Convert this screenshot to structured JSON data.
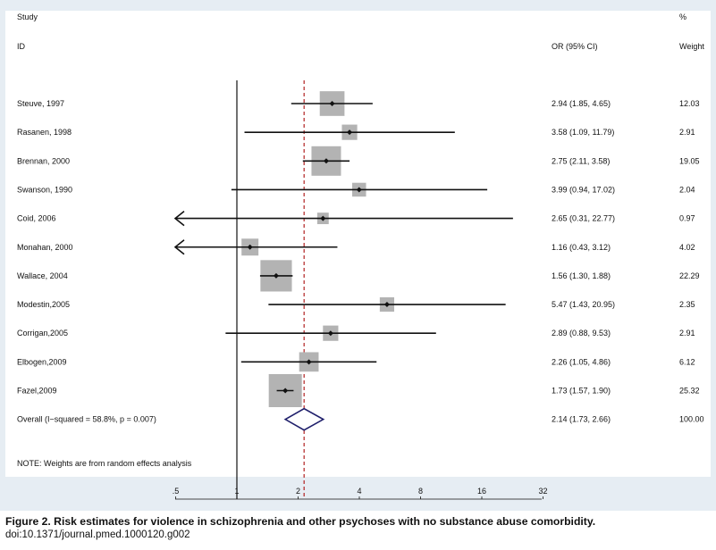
{
  "chart_data": {
    "type": "forest",
    "header": {
      "study_line1": "Study",
      "study_line2": "ID",
      "or_label": "OR (95% CI)",
      "weight_line1": "%",
      "weight_line2": "Weight"
    },
    "studies": [
      {
        "label": "Steuve, 1997",
        "or": 2.94,
        "lo": 1.85,
        "hi": 4.65,
        "weight": 12.03,
        "ci_text": "2.94 (1.85, 4.65)",
        "weight_text": "12.03"
      },
      {
        "label": "Rasanen, 1998",
        "or": 3.58,
        "lo": 1.09,
        "hi": 11.79,
        "weight": 2.91,
        "ci_text": "3.58 (1.09, 11.79)",
        "weight_text": "2.91"
      },
      {
        "label": "Brennan, 2000",
        "or": 2.75,
        "lo": 2.11,
        "hi": 3.58,
        "weight": 19.05,
        "ci_text": "2.75 (2.11, 3.58)",
        "weight_text": "19.05"
      },
      {
        "label": "Swanson, 1990",
        "or": 3.99,
        "lo": 0.94,
        "hi": 17.02,
        "weight": 2.04,
        "ci_text": "3.99 (0.94, 17.02)",
        "weight_text": "2.04"
      },
      {
        "label": "Coid, 2006",
        "or": 2.65,
        "lo": 0.31,
        "hi": 22.77,
        "weight": 0.97,
        "ci_text": "2.65 (0.31, 22.77)",
        "weight_text": "0.97"
      },
      {
        "label": "Monahan, 2000",
        "or": 1.16,
        "lo": 0.43,
        "hi": 3.12,
        "weight": 4.02,
        "ci_text": "1.16 (0.43, 3.12)",
        "weight_text": "4.02"
      },
      {
        "label": "Wallace, 2004",
        "or": 1.56,
        "lo": 1.3,
        "hi": 1.88,
        "weight": 22.29,
        "ci_text": "1.56 (1.30, 1.88)",
        "weight_text": "22.29"
      },
      {
        "label": "Modestin,2005",
        "or": 5.47,
        "lo": 1.43,
        "hi": 20.95,
        "weight": 2.35,
        "ci_text": "5.47 (1.43, 20.95)",
        "weight_text": "2.35"
      },
      {
        "label": "Corrigan,2005",
        "or": 2.89,
        "lo": 0.88,
        "hi": 9.53,
        "weight": 2.91,
        "ci_text": "2.89 (0.88, 9.53)",
        "weight_text": "2.91"
      },
      {
        "label": "Elbogen,2009",
        "or": 2.26,
        "lo": 1.05,
        "hi": 4.86,
        "weight": 6.12,
        "ci_text": "2.26 (1.05, 4.86)",
        "weight_text": "6.12"
      },
      {
        "label": "Fazel,2009",
        "or": 1.73,
        "lo": 1.57,
        "hi": 1.9,
        "weight": 25.32,
        "ci_text": "1.73 (1.57, 1.90)",
        "weight_text": "25.32"
      }
    ],
    "overall": {
      "label": "Overall  (I−squared = 58.8%, p = 0.007)",
      "or": 2.14,
      "lo": 1.73,
      "hi": 2.66,
      "weight": 100.0,
      "ci_text": "2.14 (1.73, 2.66)",
      "weight_text": "100.00"
    },
    "note": "NOTE: Weights are from random effects analysis",
    "x_scale": "log",
    "x_ticks": [
      {
        "value": 0.5,
        "label": ".5"
      },
      {
        "value": 1,
        "label": "1"
      },
      {
        "value": 2,
        "label": "2"
      },
      {
        "value": 4,
        "label": "4"
      },
      {
        "value": 8,
        "label": "8"
      },
      {
        "value": 16,
        "label": "16"
      },
      {
        "value": 32,
        "label": "32"
      }
    ],
    "null_line": 1,
    "colors": {
      "background": "#e6edf3",
      "plot_area": "#ffffff",
      "weight_box": "#b3b3b3",
      "diamond": "#1f1f6b",
      "summary_line": "#b22222"
    }
  },
  "caption": {
    "title": "Figure 2. Risk estimates for violence in schizophrenia and other psychoses with no substance abuse comorbidity.",
    "doi": "doi:10.1371/journal.pmed.1000120.g002"
  }
}
